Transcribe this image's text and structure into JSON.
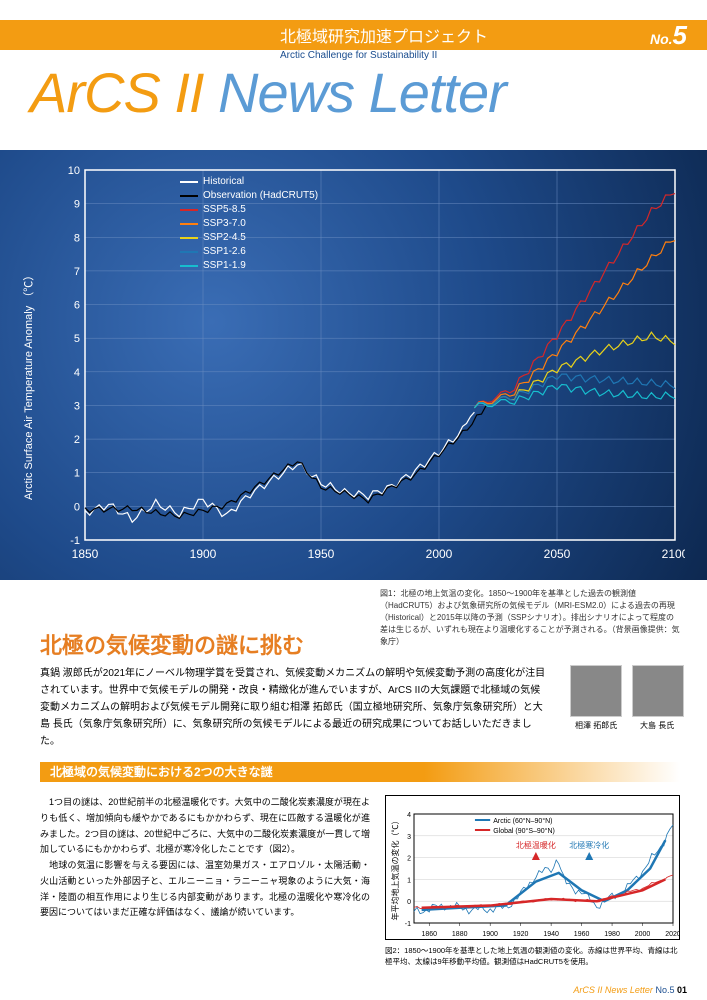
{
  "header": {
    "project_ja": "北極域研究加速プロジェクト",
    "project_en": "Arctic Challenge for Sustainability II",
    "issue_prefix": "No.",
    "issue_number": "5"
  },
  "title": {
    "part1": "ArCS II",
    "part2": " News Letter"
  },
  "chart1": {
    "type": "line",
    "xlim": [
      1850,
      2100
    ],
    "ylim": [
      -1,
      10
    ],
    "xtick_step": 50,
    "ytick_step": 1,
    "background": "radial-gradient blue globe",
    "axis_color": "#ffffff",
    "grid_color": "#6a8cc0",
    "ylabel": "Arctic Surface Air Temperature Anomaly （℃）",
    "ylabel_fontsize": 11,
    "tick_fontsize": 11,
    "series": [
      {
        "name": "Historical",
        "color": "#ffffff",
        "width": 1.2
      },
      {
        "name": "Observation (HadCRUT5)",
        "color": "#000000",
        "width": 1.2
      },
      {
        "name": "SSP5-8.5",
        "color": "#d62728",
        "width": 1.2
      },
      {
        "name": "SSP3-7.0",
        "color": "#ff7f0e",
        "width": 1.2
      },
      {
        "name": "SSP2-4.5",
        "color": "#e8d21a",
        "width": 1.2
      },
      {
        "name": "SSP1-2.6",
        "color": "#1f77b4",
        "width": 1.2
      },
      {
        "name": "SSP1-1.9",
        "color": "#17becf",
        "width": 1.2
      }
    ],
    "historical_data": [
      [
        1850,
        -0.2
      ],
      [
        1860,
        0.1
      ],
      [
        1870,
        -0.3
      ],
      [
        1880,
        0.2
      ],
      [
        1890,
        -0.1
      ],
      [
        1900,
        0.3
      ],
      [
        1910,
        -0.2
      ],
      [
        1920,
        0.4
      ],
      [
        1930,
        0.8
      ],
      [
        1940,
        1.2
      ],
      [
        1950,
        0.6
      ],
      [
        1960,
        0.3
      ],
      [
        1970,
        0.2
      ],
      [
        1980,
        0.5
      ],
      [
        1990,
        1.0
      ],
      [
        2000,
        1.6
      ],
      [
        2010,
        2.3
      ],
      [
        2015,
        2.8
      ]
    ],
    "observation_data": [
      [
        1850,
        -0.1
      ],
      [
        1870,
        0.0
      ],
      [
        1890,
        -0.2
      ],
      [
        1910,
        0.1
      ],
      [
        1930,
        0.9
      ],
      [
        1940,
        1.3
      ],
      [
        1950,
        0.5
      ],
      [
        1970,
        0.1
      ],
      [
        1990,
        0.9
      ],
      [
        2010,
        2.2
      ],
      [
        2020,
        3.0
      ]
    ],
    "ssp585_data": [
      [
        2015,
        2.8
      ],
      [
        2030,
        3.5
      ],
      [
        2050,
        5.2
      ],
      [
        2070,
        7.0
      ],
      [
        2090,
        8.7
      ],
      [
        2100,
        9.3
      ]
    ],
    "ssp370_data": [
      [
        2015,
        2.8
      ],
      [
        2030,
        3.4
      ],
      [
        2050,
        4.7
      ],
      [
        2070,
        6.0
      ],
      [
        2090,
        7.3
      ],
      [
        2100,
        7.9
      ]
    ],
    "ssp245_data": [
      [
        2015,
        2.8
      ],
      [
        2030,
        3.3
      ],
      [
        2050,
        4.2
      ],
      [
        2070,
        4.7
      ],
      [
        2090,
        5.0
      ],
      [
        2100,
        4.8
      ]
    ],
    "ssp126_data": [
      [
        2015,
        2.8
      ],
      [
        2030,
        3.3
      ],
      [
        2050,
        4.0
      ],
      [
        2070,
        3.8
      ],
      [
        2090,
        3.6
      ],
      [
        2100,
        3.5
      ]
    ],
    "ssp119_data": [
      [
        2015,
        2.8
      ],
      [
        2030,
        3.2
      ],
      [
        2050,
        3.7
      ],
      [
        2070,
        3.4
      ],
      [
        2090,
        3.2
      ],
      [
        2100,
        3.2
      ]
    ]
  },
  "caption1": "図1：北極の地上気温の変化。1850〜1900年を基準とした過去の観測値（HadCRUT5）および気象研究所の気候モデル（MRI-ESM2.0）による過去の再現（Historical）と2015年以降の予測（SSPシナリオ）。排出シナリオによって程度の差は生じるが、いずれも現在より温暖化することが予測される。（背景画像提供：気象庁）",
  "headline": "北極の気候変動の謎に挑む",
  "intro": "真鍋 淑郎氏が2021年にノーベル物理学賞を受賞され、気候変動メカニズムの解明や気候変動予測の高度化が注目されています。世界中で気候モデルの開発・改良・精緻化が進んでいますが、ArCS IIの大気課題で北極域の気候変動メカニズムの解明および気候モデル開発に取り組む相澤 拓郎氏（国立極地研究所、気象庁気象研究所）と大島 長氏（気象庁気象研究所）に、気象研究所の気候モデルによる最近の研究成果についてお話しいただきました。",
  "people": [
    {
      "name": "相澤 拓郎氏"
    },
    {
      "name": "大島 長氏"
    }
  ],
  "section_title": "北極域の気候変動における2つの大きな謎",
  "body": "　1つ目の謎は、20世紀前半の北極温暖化です。大気中の二酸化炭素濃度が現在よりも低く、増加傾向も緩やかであるにもかかわらず、現在に匹敵する温暖化が進みました。2つ目の謎は、20世紀中ごろに、大気中の二酸化炭素濃度が一貫して増加しているにもかかわらず、北極が寒冷化したことです（図2）。\n　地球の気温に影響を与える要因には、温室効果ガス・エアロゾル・太陽活動・火山活動といった外部因子と、エルニーニョ・ラニーニャ現象のように大気・海洋・陸面の相互作用により生じる内部変動があります。北極の温暖化や寒冷化の要因についてはいまだ正確な評価はなく、議論が続いています。",
  "chart2": {
    "type": "line",
    "xlim": [
      1850,
      2020
    ],
    "ylim": [
      -1,
      4
    ],
    "xtick_step": 20,
    "ytick_step": 1,
    "background_color": "#ffffff",
    "grid_color": "#cccccc",
    "axis_color": "#000000",
    "ylabel": "年平均地上気温の変化（℃）",
    "ylabel_fontsize": 8,
    "tick_fontsize": 7,
    "annotations": [
      {
        "text": "北極温暖化",
        "x": 1930,
        "color": "#d62728"
      },
      {
        "text": "北極寒冷化",
        "x": 1965,
        "color": "#1f77b4"
      }
    ],
    "series": [
      {
        "name": "Arctic (60°N–90°N)",
        "color_thin": "#1f77b4",
        "color_thick": "#1f77b4",
        "width_thin": 0.8,
        "width_thick": 2.5
      },
      {
        "name": "Global (90°S–90°N)",
        "color_thin": "#d62728",
        "color_thick": "#d62728",
        "width_thin": 0.8,
        "width_thick": 2.5
      }
    ],
    "arctic_thin": [
      [
        1850,
        -0.5
      ],
      [
        1870,
        -0.2
      ],
      [
        1890,
        -0.4
      ],
      [
        1910,
        -0.3
      ],
      [
        1920,
        0.3
      ],
      [
        1930,
        1.2
      ],
      [
        1940,
        1.5
      ],
      [
        1945,
        1.8
      ],
      [
        1950,
        0.8
      ],
      [
        1960,
        0.4
      ],
      [
        1970,
        -0.2
      ],
      [
        1980,
        0.2
      ],
      [
        1990,
        0.6
      ],
      [
        2000,
        1.4
      ],
      [
        2010,
        2.3
      ],
      [
        2020,
        3.5
      ]
    ],
    "arctic_thick": [
      [
        1855,
        -0.4
      ],
      [
        1880,
        -0.3
      ],
      [
        1910,
        -0.2
      ],
      [
        1930,
        0.9
      ],
      [
        1945,
        1.3
      ],
      [
        1960,
        0.5
      ],
      [
        1975,
        0.0
      ],
      [
        1990,
        0.5
      ],
      [
        2005,
        1.5
      ],
      [
        2015,
        2.8
      ]
    ],
    "global_thin": [
      [
        1850,
        -0.3
      ],
      [
        1900,
        -0.2
      ],
      [
        1940,
        0.1
      ],
      [
        1970,
        0.0
      ],
      [
        2000,
        0.6
      ],
      [
        2020,
        1.2
      ]
    ],
    "global_thick": [
      [
        1855,
        -0.3
      ],
      [
        1900,
        -0.2
      ],
      [
        1940,
        0.1
      ],
      [
        1970,
        0.0
      ],
      [
        2000,
        0.5
      ],
      [
        2015,
        1.0
      ]
    ]
  },
  "caption2": "図2：1850〜1900年を基準とした地上気温の観測値の変化。赤線は世界平均、青線は北極平均、太線は9年移動平均値。観測値はHadCRUT5を使用。",
  "footer": {
    "mag": "ArCS II News Letter",
    "issue": "No.5",
    "page": "01"
  }
}
